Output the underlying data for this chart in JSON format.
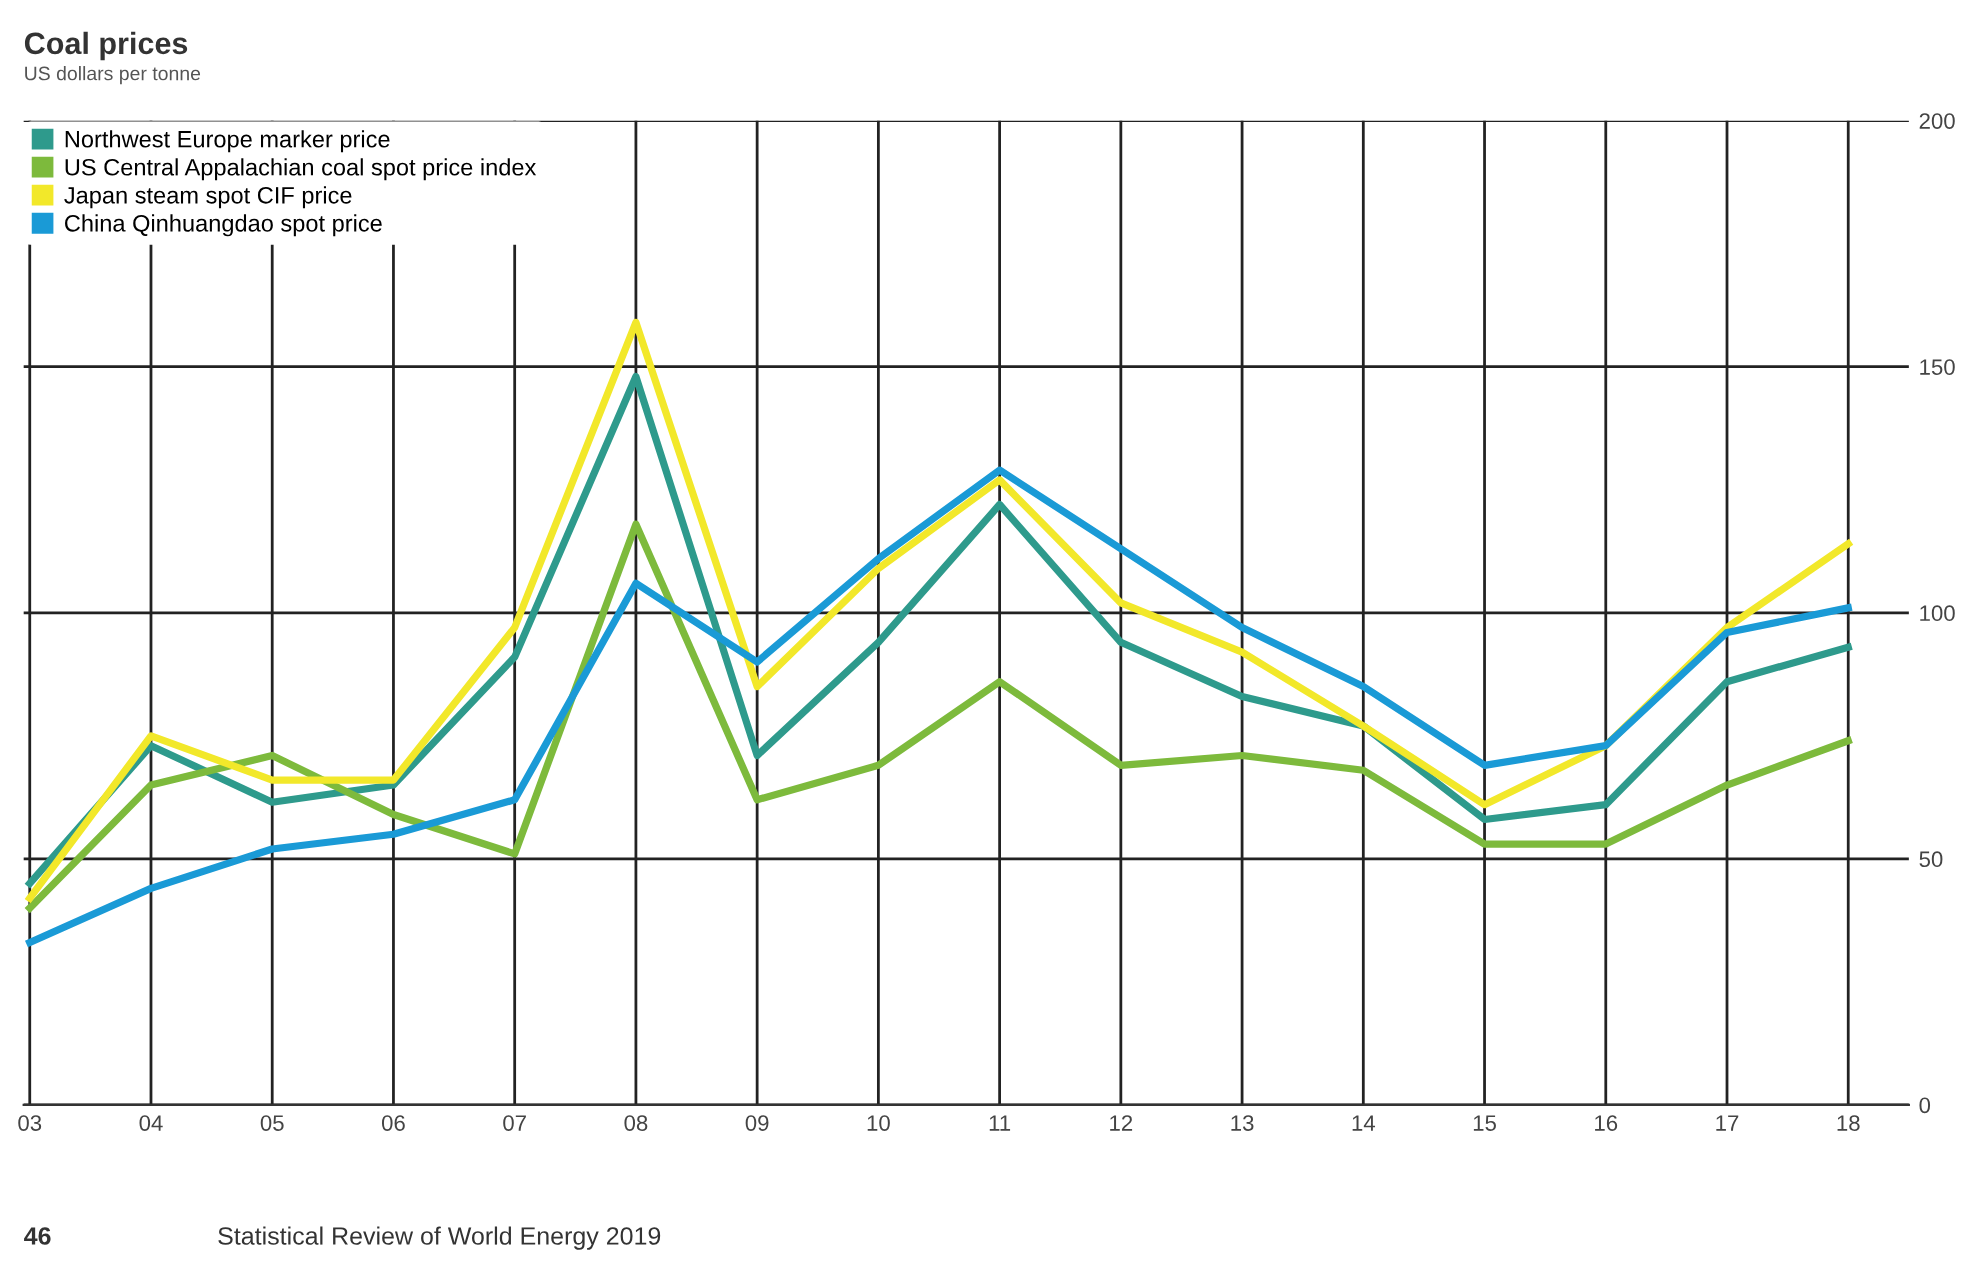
{
  "chart_data": {
    "type": "line",
    "title": "Coal prices",
    "subtitle": "US dollars per tonne",
    "categories": [
      "03",
      "04",
      "05",
      "06",
      "07",
      "08",
      "09",
      "10",
      "11",
      "12",
      "13",
      "14",
      "15",
      "16",
      "17",
      "18"
    ],
    "series": [
      {
        "name": "Northwest Europe marker price",
        "color": "#2e9a8c",
        "values": [
          45,
          73,
          61.5,
          65,
          91,
          148,
          71,
          94,
          122,
          94,
          83,
          77,
          58,
          61,
          86,
          93
        ]
      },
      {
        "name": "US Central Appalachian coal spot price index",
        "color": "#7dba3c",
        "values": [
          40,
          65,
          71,
          59,
          51,
          118,
          62,
          69,
          86,
          69,
          71,
          68,
          53,
          53,
          65,
          74
        ]
      },
      {
        "name": "Japan steam spot CIF price",
        "color": "#f2e82a",
        "values": [
          42,
          75,
          66,
          66,
          97,
          159,
          85,
          109,
          127,
          102,
          92,
          77,
          61,
          73,
          97,
          114
        ]
      },
      {
        "name": "China Qinhuangdao spot price",
        "color": "#1a9ad6",
        "values": [
          33,
          44,
          52,
          55,
          62,
          106,
          90,
          111,
          129,
          113,
          97,
          85,
          69,
          73,
          96,
          101
        ]
      }
    ],
    "ylim": [
      0,
      200
    ],
    "yticks": [
      0,
      50,
      100,
      150,
      200
    ],
    "grid": true,
    "legend": "top left",
    "marker": "none",
    "line_style": "solid",
    "annotations": [
      "46",
      "Statistical Review of World Energy 2019"
    ]
  }
}
